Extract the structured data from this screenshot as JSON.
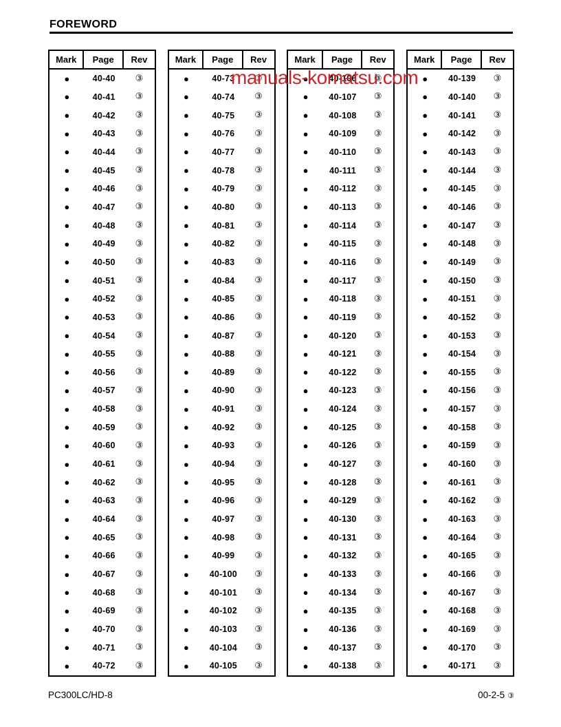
{
  "page": {
    "title": "FOREWORD",
    "watermark": {
      "text": "manuals-komatsu.com",
      "color": "#c9252b"
    },
    "footer": {
      "left": "PC300LC/HD-8",
      "right": "00-2-5",
      "right_rev": "③"
    }
  },
  "table_headers": [
    "Mark",
    "Page",
    "Rev"
  ],
  "mark_symbol": "●",
  "rev_symbol": "③",
  "tables": [
    {
      "pages": [
        "40-40",
        "40-41",
        "40-42",
        "40-43",
        "40-44",
        "40-45",
        "40-46",
        "40-47",
        "40-48",
        "40-49",
        "40-50",
        "40-51",
        "40-52",
        "40-53",
        "40-54",
        "40-55",
        "40-56",
        "40-57",
        "40-58",
        "40-59",
        "40-60",
        "40-61",
        "40-62",
        "40-63",
        "40-64",
        "40-65",
        "40-66",
        "40-67",
        "40-68",
        "40-69",
        "40-70",
        "40-71",
        "40-72"
      ]
    },
    {
      "pages": [
        "40-73",
        "40-74",
        "40-75",
        "40-76",
        "40-77",
        "40-78",
        "40-79",
        "40-80",
        "40-81",
        "40-82",
        "40-83",
        "40-84",
        "40-85",
        "40-86",
        "40-87",
        "40-88",
        "40-89",
        "40-90",
        "40-91",
        "40-92",
        "40-93",
        "40-94",
        "40-95",
        "40-96",
        "40-97",
        "40-98",
        "40-99",
        "40-100",
        "40-101",
        "40-102",
        "40-103",
        "40-104",
        "40-105"
      ]
    },
    {
      "pages": [
        "40-106",
        "40-107",
        "40-108",
        "40-109",
        "40-110",
        "40-111",
        "40-112",
        "40-113",
        "40-114",
        "40-115",
        "40-116",
        "40-117",
        "40-118",
        "40-119",
        "40-120",
        "40-121",
        "40-122",
        "40-123",
        "40-124",
        "40-125",
        "40-126",
        "40-127",
        "40-128",
        "40-129",
        "40-130",
        "40-131",
        "40-132",
        "40-133",
        "40-134",
        "40-135",
        "40-136",
        "40-137",
        "40-138"
      ]
    },
    {
      "pages": [
        "40-139",
        "40-140",
        "40-141",
        "40-142",
        "40-143",
        "40-144",
        "40-145",
        "40-146",
        "40-147",
        "40-148",
        "40-149",
        "40-150",
        "40-151",
        "40-152",
        "40-153",
        "40-154",
        "40-155",
        "40-156",
        "40-157",
        "40-158",
        "40-159",
        "40-160",
        "40-161",
        "40-162",
        "40-163",
        "40-164",
        "40-165",
        "40-166",
        "40-167",
        "40-168",
        "40-169",
        "40-170",
        "40-171"
      ]
    }
  ]
}
